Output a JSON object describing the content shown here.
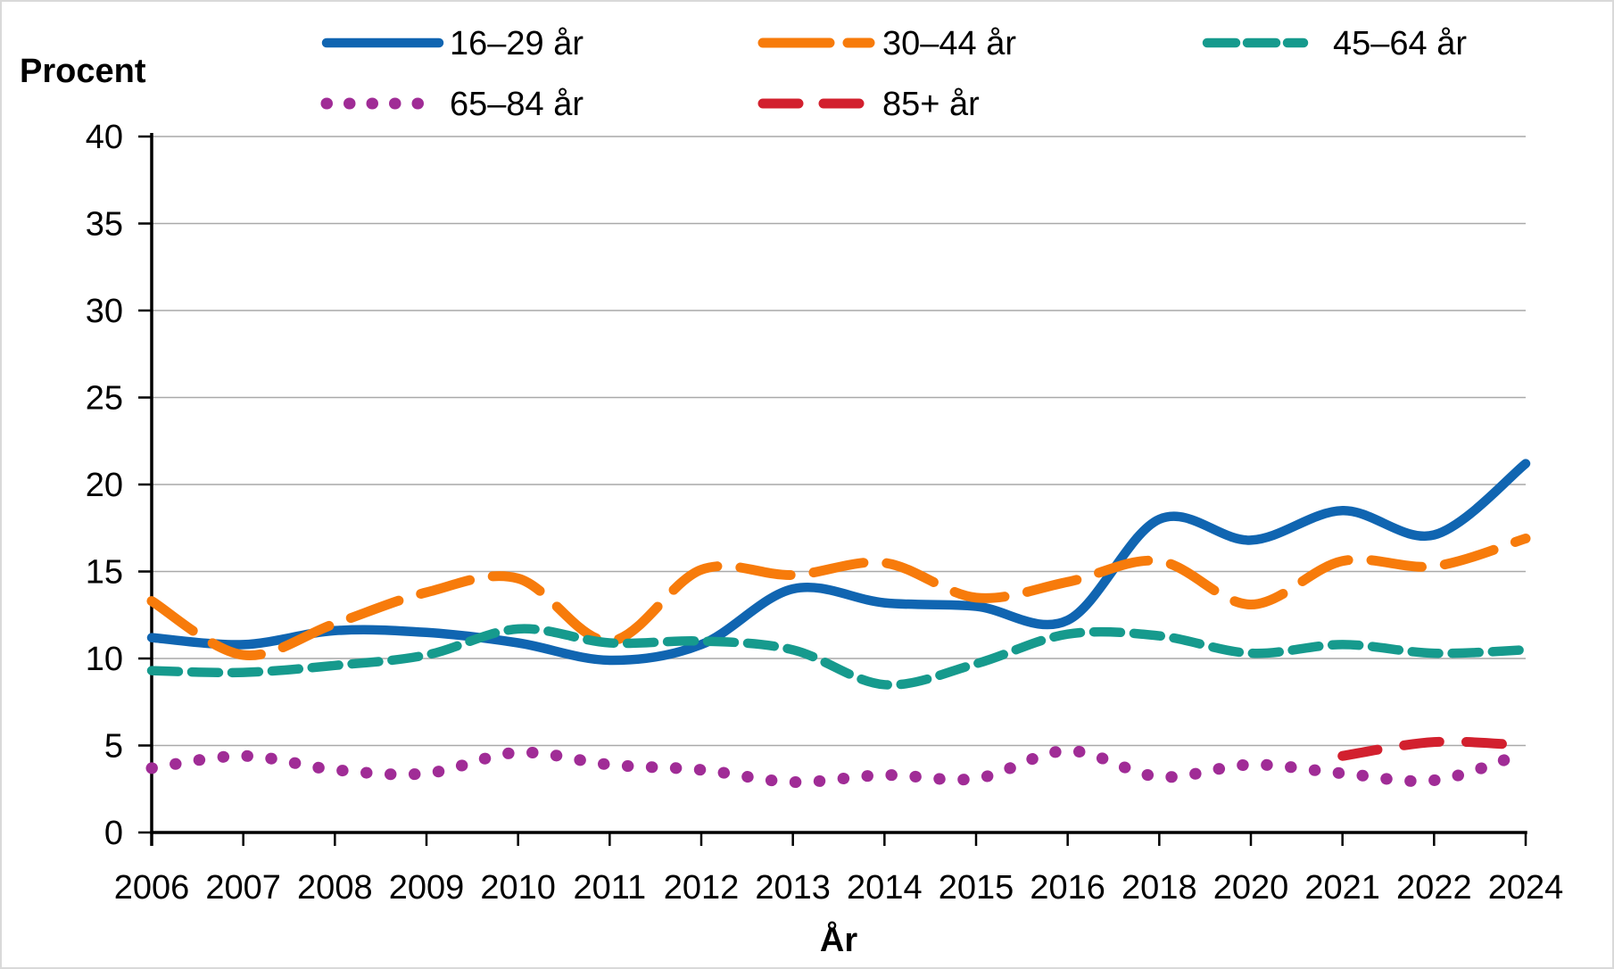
{
  "page": {
    "background": "#ffffff",
    "frame_border_color": "#d9d9d9"
  },
  "chart_data": {
    "type": "line",
    "title": "",
    "ylabel": "Procent",
    "xlabel": "År",
    "ylim": [
      0,
      40
    ],
    "yticks": [
      0,
      5,
      10,
      15,
      20,
      25,
      30,
      35,
      40
    ],
    "grid": "horizontal",
    "gridline_color": "#a9a9a9",
    "axis_color": "#000000",
    "legend_position": "top",
    "line_smoothing": true,
    "categories": [
      "2006",
      "2007",
      "2008",
      "2009",
      "2010",
      "2011",
      "2012",
      "2013",
      "2014",
      "2015",
      "2016",
      "2018",
      "2020",
      "2021",
      "2022",
      "2024"
    ],
    "series": [
      {
        "name": "16–29 år",
        "color": "#1065b1",
        "style": "solid",
        "values": [
          11.2,
          10.8,
          11.6,
          11.5,
          10.9,
          9.9,
          10.8,
          14.0,
          13.2,
          13.0,
          12.2,
          18.0,
          16.8,
          18.5,
          17.1,
          21.2
        ]
      },
      {
        "name": "30–44 år",
        "color": "#f77b0b",
        "style": "long-dash",
        "values": [
          13.3,
          10.2,
          12.0,
          13.8,
          14.6,
          11.0,
          15.1,
          14.8,
          15.5,
          13.5,
          14.4,
          15.6,
          13.1,
          15.6,
          15.3,
          16.9
        ]
      },
      {
        "name": "45–64 år",
        "color": "#169a8d",
        "style": "medium-dash",
        "values": [
          9.3,
          9.2,
          9.6,
          10.2,
          11.7,
          10.9,
          11.0,
          10.5,
          8.5,
          9.7,
          11.4,
          11.3,
          10.3,
          10.8,
          10.3,
          10.5
        ]
      },
      {
        "name": "65–84 år",
        "color": "#a02c96",
        "style": "dot",
        "values": [
          3.7,
          4.4,
          3.6,
          3.4,
          4.6,
          3.9,
          3.6,
          2.9,
          3.3,
          3.1,
          4.7,
          3.2,
          3.9,
          3.4,
          3.0,
          4.6
        ]
      },
      {
        "name": "85+ år",
        "color": "#d2202e",
        "style": "short-dash",
        "values": [
          null,
          null,
          null,
          null,
          null,
          null,
          null,
          null,
          null,
          null,
          null,
          null,
          null,
          4.4,
          5.2,
          5.0
        ]
      }
    ]
  }
}
